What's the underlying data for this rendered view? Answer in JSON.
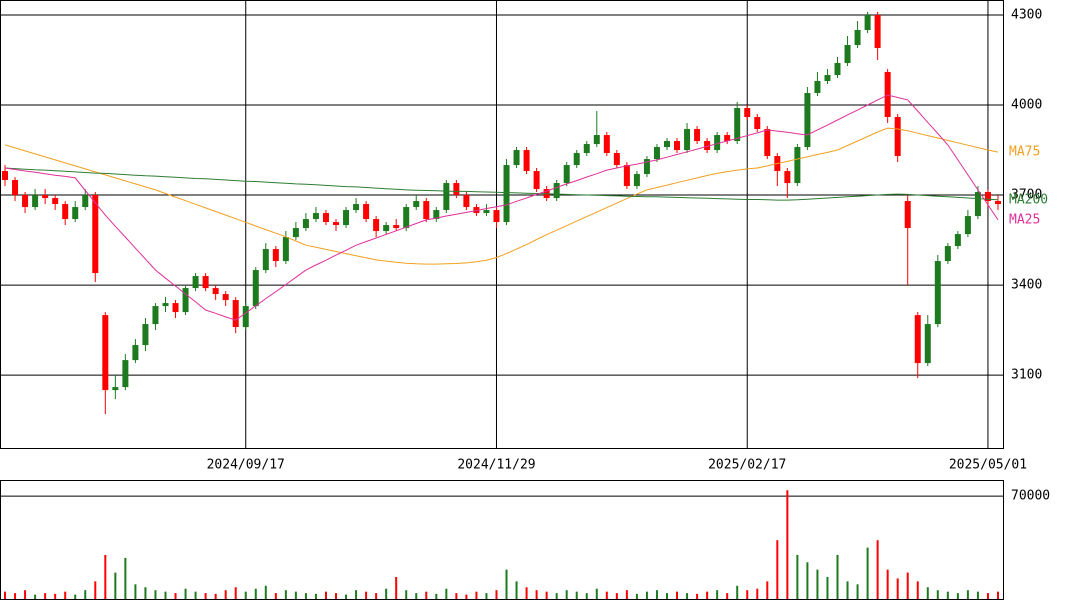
{
  "chart_data": {
    "type": "candlestick",
    "categories": [
      null,
      null,
      null,
      null,
      null,
      null,
      null,
      null,
      null,
      null,
      null,
      null,
      null,
      null,
      null,
      null,
      null,
      null,
      null,
      null,
      null,
      null,
      null,
      null,
      "2024/09/17",
      null,
      null,
      null,
      null,
      null,
      null,
      null,
      null,
      null,
      null,
      null,
      null,
      null,
      null,
      null,
      null,
      null,
      null,
      null,
      null,
      null,
      null,
      null,
      null,
      "2024/11/29",
      null,
      null,
      null,
      null,
      null,
      null,
      null,
      null,
      null,
      null,
      null,
      null,
      null,
      null,
      null,
      null,
      null,
      null,
      null,
      null,
      null,
      null,
      null,
      null,
      "2025/02/17",
      null,
      null,
      null,
      null,
      null,
      null,
      null,
      null,
      null,
      null,
      null,
      null,
      null,
      null,
      null,
      null,
      null,
      null,
      null,
      null,
      null,
      null,
      null,
      "2025/05/01",
      null
    ],
    "candles": [
      [
        3780,
        3800,
        3730,
        3750
      ],
      [
        3750,
        3760,
        3680,
        3700
      ],
      [
        3700,
        3710,
        3640,
        3660
      ],
      [
        3660,
        3720,
        3650,
        3700
      ],
      [
        3700,
        3720,
        3670,
        3690
      ],
      [
        3690,
        3700,
        3650,
        3670
      ],
      [
        3670,
        3680,
        3600,
        3620
      ],
      [
        3620,
        3680,
        3610,
        3660
      ],
      [
        3660,
        3720,
        3650,
        3700
      ],
      [
        3700,
        3710,
        3410,
        3440
      ],
      [
        3300,
        3310,
        2970,
        3050
      ],
      [
        3050,
        3100,
        3020,
        3060
      ],
      [
        3060,
        3170,
        3050,
        3150
      ],
      [
        3150,
        3220,
        3140,
        3200
      ],
      [
        3200,
        3290,
        3180,
        3270
      ],
      [
        3270,
        3340,
        3250,
        3330
      ],
      [
        3330,
        3360,
        3310,
        3340
      ],
      [
        3340,
        3350,
        3290,
        3310
      ],
      [
        3310,
        3400,
        3300,
        3390
      ],
      [
        3390,
        3440,
        3380,
        3430
      ],
      [
        3430,
        3440,
        3380,
        3390
      ],
      [
        3390,
        3400,
        3350,
        3370
      ],
      [
        3370,
        3380,
        3330,
        3350
      ],
      [
        3350,
        3360,
        3240,
        3260
      ],
      [
        3260,
        3340,
        3250,
        3330
      ],
      [
        3330,
        3460,
        3320,
        3450
      ],
      [
        3450,
        3540,
        3440,
        3520
      ],
      [
        3520,
        3530,
        3460,
        3480
      ],
      [
        3480,
        3580,
        3470,
        3560
      ],
      [
        3560,
        3610,
        3550,
        3590
      ],
      [
        3590,
        3640,
        3580,
        3620
      ],
      [
        3620,
        3660,
        3610,
        3640
      ],
      [
        3640,
        3650,
        3600,
        3610
      ],
      [
        3610,
        3620,
        3580,
        3600
      ],
      [
        3600,
        3660,
        3590,
        3650
      ],
      [
        3650,
        3690,
        3640,
        3670
      ],
      [
        3670,
        3680,
        3610,
        3620
      ],
      [
        3620,
        3630,
        3560,
        3580
      ],
      [
        3580,
        3610,
        3570,
        3600
      ],
      [
        3600,
        3620,
        3580,
        3590
      ],
      [
        3590,
        3670,
        3580,
        3660
      ],
      [
        3660,
        3700,
        3650,
        3680
      ],
      [
        3680,
        3690,
        3610,
        3620
      ],
      [
        3620,
        3660,
        3610,
        3650
      ],
      [
        3650,
        3750,
        3640,
        3740
      ],
      [
        3740,
        3750,
        3690,
        3700
      ],
      [
        3700,
        3710,
        3650,
        3660
      ],
      [
        3660,
        3670,
        3630,
        3640
      ],
      [
        3640,
        3670,
        3630,
        3650
      ],
      [
        3650,
        3660,
        3590,
        3610
      ],
      [
        3610,
        3820,
        3600,
        3800
      ],
      [
        3800,
        3860,
        3790,
        3850
      ],
      [
        3850,
        3860,
        3770,
        3780
      ],
      [
        3780,
        3790,
        3710,
        3720
      ],
      [
        3720,
        3730,
        3680,
        3690
      ],
      [
        3690,
        3750,
        3680,
        3740
      ],
      [
        3740,
        3810,
        3730,
        3800
      ],
      [
        3800,
        3850,
        3790,
        3840
      ],
      [
        3840,
        3880,
        3830,
        3870
      ],
      [
        3870,
        3980,
        3860,
        3900
      ],
      [
        3900,
        3910,
        3830,
        3840
      ],
      [
        3840,
        3850,
        3790,
        3800
      ],
      [
        3800,
        3810,
        3720,
        3730
      ],
      [
        3730,
        3780,
        3720,
        3770
      ],
      [
        3770,
        3830,
        3760,
        3820
      ],
      [
        3820,
        3870,
        3810,
        3860
      ],
      [
        3860,
        3890,
        3850,
        3880
      ],
      [
        3880,
        3890,
        3840,
        3850
      ],
      [
        3850,
        3940,
        3840,
        3920
      ],
      [
        3920,
        3930,
        3870,
        3880
      ],
      [
        3880,
        3890,
        3840,
        3850
      ],
      [
        3850,
        3910,
        3840,
        3900
      ],
      [
        3900,
        3910,
        3870,
        3880
      ],
      [
        3880,
        4010,
        3870,
        3990
      ],
      [
        3990,
        4000,
        3950,
        3960
      ],
      [
        3960,
        3970,
        3910,
        3920
      ],
      [
        3920,
        3930,
        3820,
        3830
      ],
      [
        3830,
        3840,
        3730,
        3780
      ],
      [
        3780,
        3790,
        3690,
        3740
      ],
      [
        3740,
        3870,
        3730,
        3860
      ],
      [
        3860,
        4060,
        3850,
        4040
      ],
      [
        4040,
        4110,
        4030,
        4080
      ],
      [
        4080,
        4120,
        4070,
        4100
      ],
      [
        4100,
        4160,
        4090,
        4140
      ],
      [
        4140,
        4230,
        4130,
        4200
      ],
      [
        4200,
        4280,
        4190,
        4250
      ],
      [
        4250,
        4310,
        4240,
        4300
      ],
      [
        4300,
        4310,
        4150,
        4190
      ],
      [
        4110,
        4120,
        3940,
        3960
      ],
      [
        3960,
        3970,
        3810,
        3830
      ],
      [
        3680,
        3700,
        3400,
        3590
      ],
      [
        3300,
        3310,
        3090,
        3140
      ],
      [
        3140,
        3300,
        3130,
        3270
      ],
      [
        3270,
        3500,
        3260,
        3480
      ],
      [
        3480,
        3540,
        3470,
        3530
      ],
      [
        3530,
        3580,
        3520,
        3570
      ],
      [
        3570,
        3650,
        3560,
        3630
      ],
      [
        3630,
        3730,
        3620,
        3710
      ],
      [
        3710,
        3720,
        3660,
        3680
      ],
      [
        3680,
        3700,
        3650,
        3670
      ]
    ],
    "up_color": "#1e7a1e",
    "down_color": "#ff0000",
    "ylim": [
      2857,
      4350
    ],
    "yticks": [
      3100,
      3400,
      3700,
      4000,
      4300
    ],
    "grid": true,
    "series": [
      {
        "name": "MA75",
        "color": "#f0a020",
        "values": [
          3867,
          3857,
          3847,
          3837,
          3827,
          3817,
          3807,
          3797,
          3787,
          3777,
          3767,
          3757,
          3747,
          3737,
          3727,
          3717,
          3705,
          3693,
          3681,
          3669,
          3657,
          3645,
          3633,
          3621,
          3609,
          3597,
          3585,
          3573,
          3561,
          3547,
          3533,
          3526,
          3519,
          3512,
          3505,
          3498,
          3491,
          3484,
          3480,
          3476,
          3473,
          3471,
          3470,
          3470,
          3471,
          3472,
          3474,
          3478,
          3483,
          3492,
          3505,
          3520,
          3535,
          3552,
          3568,
          3583,
          3598,
          3613,
          3628,
          3643,
          3658,
          3673,
          3688,
          3703,
          3717,
          3725,
          3733,
          3741,
          3749,
          3757,
          3765,
          3772,
          3778,
          3783,
          3787,
          3790,
          3797,
          3805,
          3812,
          3820,
          3827,
          3835,
          3842,
          3850,
          3865,
          3880,
          3895,
          3910,
          3923,
          3920,
          3914,
          3906,
          3898,
          3890,
          3882,
          3874,
          3866,
          3858,
          3850,
          3843
        ]
      },
      {
        "name": "MA200",
        "color": "#2e7d32",
        "values": [
          3790,
          3788,
          3786,
          3784,
          3783,
          3781,
          3779,
          3777,
          3775,
          3773,
          3772,
          3770,
          3768,
          3766,
          3764,
          3763,
          3761,
          3759,
          3757,
          3755,
          3754,
          3752,
          3750,
          3748,
          3746,
          3745,
          3743,
          3741,
          3739,
          3737,
          3736,
          3734,
          3732,
          3730,
          3728,
          3727,
          3725,
          3723,
          3721,
          3719,
          3717,
          3716,
          3715,
          3714,
          3713,
          3712,
          3712,
          3711,
          3710,
          3709,
          3708,
          3707,
          3706,
          3705,
          3704,
          3703,
          3702,
          3701,
          3700,
          3699,
          3698,
          3697,
          3696,
          3695,
          3694,
          3694,
          3693,
          3692,
          3691,
          3690,
          3689,
          3688,
          3687,
          3686,
          3685,
          3685,
          3684,
          3683,
          3683,
          3684,
          3686,
          3688,
          3690,
          3692,
          3694,
          3696,
          3698,
          3700,
          3702,
          3703,
          3702,
          3700,
          3698,
          3696,
          3694,
          3692,
          3690,
          3688,
          3686,
          3684
        ]
      },
      {
        "name": "MA25",
        "color": "#e0309a",
        "values": [
          3790,
          3785,
          3780,
          3776,
          3771,
          3766,
          3762,
          3757,
          3715,
          3674,
          3633,
          3596,
          3560,
          3523,
          3487,
          3450,
          3423,
          3397,
          3370,
          3344,
          3317,
          3306,
          3294,
          3283,
          3307,
          3331,
          3355,
          3378,
          3402,
          3426,
          3450,
          3467,
          3483,
          3500,
          3516,
          3533,
          3545,
          3557,
          3569,
          3581,
          3593,
          3605,
          3617,
          3623,
          3630,
          3636,
          3642,
          3648,
          3655,
          3661,
          3667,
          3679,
          3690,
          3702,
          3713,
          3725,
          3737,
          3748,
          3760,
          3771,
          3783,
          3790,
          3797,
          3803,
          3810,
          3817,
          3826,
          3835,
          3844,
          3853,
          3862,
          3871,
          3880,
          3889,
          3898,
          3907,
          3917,
          3913,
          3909,
          3904,
          3900,
          3917,
          3933,
          3950,
          3967,
          3983,
          4000,
          4017,
          4033,
          4025,
          4017,
          3980,
          3942,
          3905,
          3867,
          3817,
          3767,
          3717,
          3667,
          3617
        ]
      }
    ],
    "volume": {
      "values": [
        5000,
        4000,
        6000,
        3000,
        4000,
        3500,
        5000,
        3000,
        6000,
        12000,
        30000,
        18000,
        28000,
        10000,
        8000,
        6000,
        5000,
        4000,
        7000,
        5000,
        4000,
        3500,
        6000,
        8000,
        5000,
        7000,
        9000,
        4000,
        6000,
        5000,
        4000,
        3500,
        5000,
        4000,
        3000,
        6000,
        5000,
        4000,
        7000,
        15000,
        6000,
        4000,
        5000,
        3500,
        7000,
        4000,
        3000,
        5000,
        4000,
        6000,
        20000,
        12000,
        8000,
        6000,
        5000,
        4000,
        6000,
        5000,
        4000,
        7000,
        5000,
        4000,
        6000,
        3500,
        5000,
        6000,
        4000,
        5000,
        4000,
        3500,
        5000,
        6000,
        4000,
        9000,
        6000,
        7000,
        12000,
        40000,
        74000,
        30000,
        25000,
        20000,
        15000,
        30000,
        12000,
        10000,
        35000,
        40000,
        20000,
        14000,
        18000,
        12000,
        8000,
        6000,
        5000,
        4000,
        6000,
        5000,
        4000,
        5000
      ],
      "ylim": [
        0,
        81000
      ],
      "yticks": [
        70000
      ]
    }
  }
}
